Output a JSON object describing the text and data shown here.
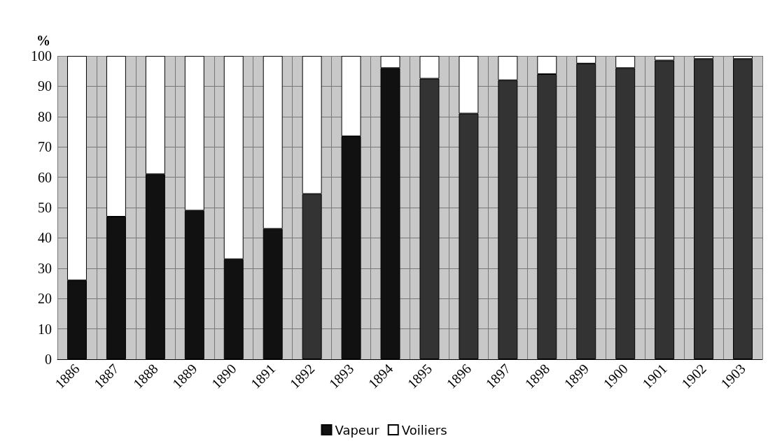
{
  "chart_data": {
    "type": "bar",
    "ylabel": "%",
    "stacked": true,
    "categories": [
      "1886",
      "1887",
      "1888",
      "1889",
      "1890",
      "1891",
      "1892",
      "1893",
      "1894",
      "1895",
      "1896",
      "1897",
      "1898",
      "1899",
      "1900",
      "1901",
      "1902",
      "1903"
    ],
    "series": [
      {
        "name": "Vapeur",
        "color": "#111111",
        "colors": [
          "#111111",
          "#111111",
          "#111111",
          "#111111",
          "#111111",
          "#111111",
          "#333333",
          "#111111",
          "#111111",
          "#333333",
          "#333333",
          "#333333",
          "#333333",
          "#333333",
          "#333333",
          "#333333",
          "#333333",
          "#333333"
        ],
        "values": [
          26,
          47,
          61,
          49,
          33,
          43,
          54.5,
          73.5,
          96,
          92.5,
          81,
          92,
          94,
          97.5,
          96,
          98.5,
          99,
          99
        ]
      },
      {
        "name": "Voiliers",
        "color": "#ffffff",
        "values": [
          74,
          53,
          39,
          51,
          67,
          57,
          45.5,
          26.5,
          4,
          7.5,
          19,
          8,
          6,
          2.5,
          4,
          1.5,
          1,
          1
        ]
      }
    ],
    "ylim": [
      0,
      100
    ],
    "yticks": [
      0,
      10,
      20,
      30,
      40,
      50,
      60,
      70,
      80,
      90,
      100
    ],
    "grid": true,
    "legend": "bottom"
  }
}
